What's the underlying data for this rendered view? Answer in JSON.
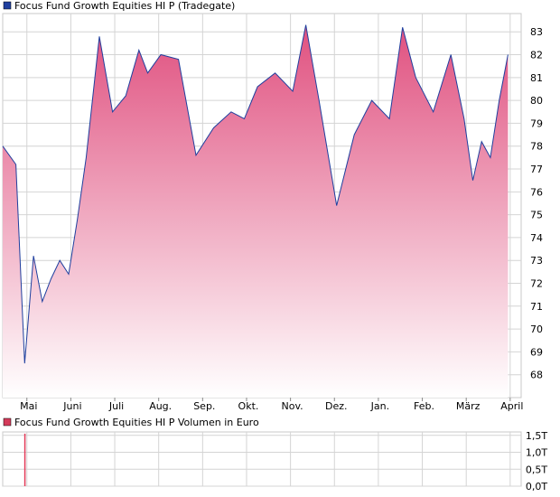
{
  "colors": {
    "line": "#1f3f9e",
    "fill_top": "#e0507f",
    "fill_bottom": "#ffffff",
    "grid": "#d4d4d4",
    "frame": "#c8c8c8",
    "legend_swatch_price": "#1f3f9e",
    "legend_swatch_volume": "#d43b5a",
    "volume_bar": "#e23a58",
    "text": "#000000"
  },
  "chart_data": [
    {
      "type": "area",
      "title": "Focus Fund Growth Equities HI P (Tradegate)",
      "xlabel": "",
      "ylabel": "",
      "x_tick_labels": [
        "Mai",
        "Juni",
        "Juli",
        "Aug.",
        "Sep.",
        "Okt.",
        "Nov.",
        "Dez.",
        "Jan.",
        "Feb.",
        "März",
        "April"
      ],
      "y_tick_labels": [
        "68",
        "69",
        "70",
        "71",
        "72",
        "73",
        "74",
        "75",
        "76",
        "77",
        "78",
        "79",
        "80",
        "81",
        "82",
        "83"
      ],
      "ylim": [
        67.0,
        83.8
      ],
      "grid": true,
      "legend_position": "top-left",
      "x": [
        0,
        0.3,
        0.5,
        0.7,
        0.9,
        1.1,
        1.3,
        1.5,
        1.7,
        1.9,
        2.2,
        2.5,
        2.8,
        3.1,
        3.3,
        3.6,
        4.0,
        4.4,
        4.8,
        5.2,
        5.5,
        5.8,
        6.2,
        6.6,
        6.9,
        7.2,
        7.6,
        8.0,
        8.4,
        8.8,
        9.1,
        9.4,
        9.8,
        10.2,
        10.5,
        10.7,
        10.9,
        11.1,
        11.3,
        11.5
      ],
      "values": [
        78.0,
        77.2,
        68.5,
        73.2,
        71.2,
        72.2,
        73.0,
        72.4,
        74.8,
        77.5,
        82.8,
        79.5,
        80.2,
        82.2,
        81.2,
        82.0,
        81.8,
        77.6,
        78.8,
        79.5,
        79.2,
        80.6,
        81.2,
        80.4,
        83.3,
        80.0,
        75.4,
        78.5,
        80.0,
        79.2,
        83.2,
        81.0,
        79.5,
        82.0,
        79.2,
        76.5,
        78.2,
        77.5,
        80.0,
        82.0
      ]
    },
    {
      "type": "bar",
      "title": "Focus Fund Growth Equities HI P Volumen in Euro",
      "xlabel": "",
      "ylabel": "",
      "y_tick_labels": [
        "0,0T",
        "0,5T",
        "1,0T",
        "1,5T"
      ],
      "ylim": [
        0,
        1.6
      ],
      "grid": true,
      "legend_position": "top-left",
      "x": [
        0.5
      ],
      "values": [
        1.55
      ]
    }
  ]
}
